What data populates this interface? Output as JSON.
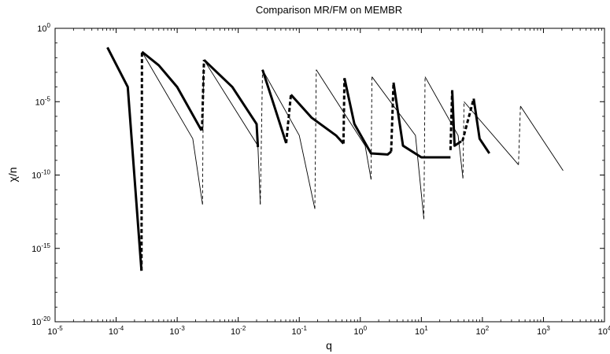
{
  "chart_data": {
    "type": "line",
    "title": "Comparison MR/FM on MEMBR",
    "xlabel": "q",
    "ylabel": "χ/n",
    "xscale": "log",
    "yscale": "log",
    "xlim": [
      1e-05,
      10000.0
    ],
    "ylim": [
      1e-20,
      1
    ],
    "grid": false,
    "legend": "none",
    "x_ticks": [
      {
        "value": 1e-05,
        "base": "10",
        "exp": "-5"
      },
      {
        "value": 0.0001,
        "base": "10",
        "exp": "-4"
      },
      {
        "value": 0.001,
        "base": "10",
        "exp": "-3"
      },
      {
        "value": 0.01,
        "base": "10",
        "exp": "-2"
      },
      {
        "value": 0.1,
        "base": "10",
        "exp": "-1"
      },
      {
        "value": 1.0,
        "base": "10",
        "exp": "0"
      },
      {
        "value": 10.0,
        "base": "10",
        "exp": "1"
      },
      {
        "value": 100.0,
        "base": "10",
        "exp": "2"
      },
      {
        "value": 1000.0,
        "base": "10",
        "exp": "3"
      },
      {
        "value": 10000.0,
        "base": "10",
        "exp": "4"
      }
    ],
    "y_ticks": [
      {
        "value": 1e-20,
        "base": "10",
        "exp": "-20"
      },
      {
        "value": 1e-15,
        "base": "10",
        "exp": "-15"
      },
      {
        "value": 1e-10,
        "base": "10",
        "exp": "-10"
      },
      {
        "value": 1e-05,
        "base": "10",
        "exp": "-5"
      },
      {
        "value": 1.0,
        "base": "10",
        "exp": "0"
      }
    ],
    "series": [
      {
        "style": "thick-solid",
        "segments": [
          [
            [
              7.2e-05,
              0.05
            ],
            [
              0.000155,
              0.0001
            ],
            [
              0.00026,
              3e-17
            ]
          ]
        ]
      },
      {
        "style": "thick-dashed",
        "segments": [
          [
            [
              0.00026,
              3e-17
            ],
            [
              0.000265,
              0.025
            ]
          ],
          [
            [
              0.00255,
              1.1e-07
            ],
            [
              0.00275,
              0.007
            ]
          ],
          [
            [
              0.061,
              1.5e-08
            ],
            [
              0.073,
              3e-05
            ]
          ],
          [
            [
              0.53,
              1.4e-08
            ],
            [
              0.55,
              0.0004
            ]
          ],
          [
            [
              3.2,
              4e-09
            ],
            [
              3.5,
              0.0002
            ]
          ],
          [
            [
              30.0,
              5e-09
            ],
            [
              32.0,
              6e-05
            ]
          ],
          [
            [
              47.0,
              2e-08
            ],
            [
              72.0,
              1.6e-05
            ]
          ]
        ]
      },
      {
        "style": "thick-solid",
        "segments": [
          [
            [
              0.000265,
              0.025
            ],
            [
              0.0005,
              0.003
            ],
            [
              0.001,
              0.0001
            ],
            [
              0.0025,
              1.1e-07
            ]
          ],
          [
            [
              0.00275,
              0.007
            ],
            [
              0.008,
              0.0001
            ],
            [
              0.02,
              3e-07
            ],
            [
              0.021,
              8e-09
            ]
          ],
          [
            [
              0.025,
              0.0015
            ],
            [
              0.035,
              2e-05
            ],
            [
              0.061,
              1.5e-08
            ]
          ],
          [
            [
              0.073,
              3e-05
            ],
            [
              0.16,
              8e-07
            ],
            [
              0.4,
              5e-08
            ],
            [
              0.53,
              1.4e-08
            ]
          ],
          [
            [
              0.55,
              0.0004
            ],
            [
              0.8,
              3e-07
            ],
            [
              1.5,
              3e-09
            ],
            [
              2.8,
              2.5e-09
            ],
            [
              3.2,
              4e-09
            ]
          ],
          [
            [
              3.5,
              0.0002
            ],
            [
              5.0,
              1e-08
            ],
            [
              10.0,
              1.6e-09
            ],
            [
              30.0,
              1.6e-09
            ]
          ],
          [
            [
              32.0,
              6e-05
            ],
            [
              35.0,
              1e-08
            ],
            [
              45.0,
              2e-08
            ]
          ],
          [
            [
              72.0,
              1.6e-05
            ],
            [
              90.0,
              3e-08
            ],
            [
              130.0,
              3e-09
            ]
          ]
        ]
      },
      {
        "style": "thin-solid",
        "segments": [
          [
            [
              0.000265,
              0.025
            ],
            [
              0.0018,
              3e-08
            ],
            [
              0.0026,
              1e-12
            ]
          ],
          [
            [
              0.00275,
              0.007
            ],
            [
              0.021,
              1e-08
            ],
            [
              0.023,
              1e-12
            ]
          ],
          [
            [
              0.025,
              0.0015
            ],
            [
              0.1,
              5e-08
            ],
            [
              0.18,
              5e-13
            ]
          ],
          [
            [
              0.19,
              0.0015
            ],
            [
              1.2,
              1e-08
            ],
            [
              1.5,
              5e-11
            ]
          ],
          [
            [
              1.55,
              0.0005
            ],
            [
              8.0,
              5e-08
            ],
            [
              11.0,
              1e-13
            ]
          ],
          [
            [
              11.5,
              0.0005
            ],
            [
              40.0,
              5e-08
            ],
            [
              48.0,
              6e-11
            ]
          ],
          [
            [
              50.0,
              1e-05
            ],
            [
              390.0,
              5e-10
            ]
          ],
          [
            [
              420.0,
              5e-06
            ],
            [
              2100.0,
              2e-10
            ]
          ]
        ]
      },
      {
        "style": "thin-dashed",
        "segments": [
          [
            [
              0.0026,
              1e-12
            ],
            [
              0.0027,
              0.007
            ]
          ],
          [
            [
              0.023,
              1e-12
            ],
            [
              0.025,
              0.0015
            ]
          ],
          [
            [
              0.18,
              5e-13
            ],
            [
              0.19,
              0.0015
            ]
          ],
          [
            [
              1.5,
              5e-11
            ],
            [
              1.55,
              0.0005
            ]
          ],
          [
            [
              11.0,
              1e-13
            ],
            [
              11.5,
              0.0005
            ]
          ],
          [
            [
              48.0,
              6e-11
            ],
            [
              50.0,
              1e-05
            ]
          ],
          [
            [
              390.0,
              5e-10
            ],
            [
              420.0,
              5e-06
            ]
          ]
        ]
      }
    ]
  }
}
